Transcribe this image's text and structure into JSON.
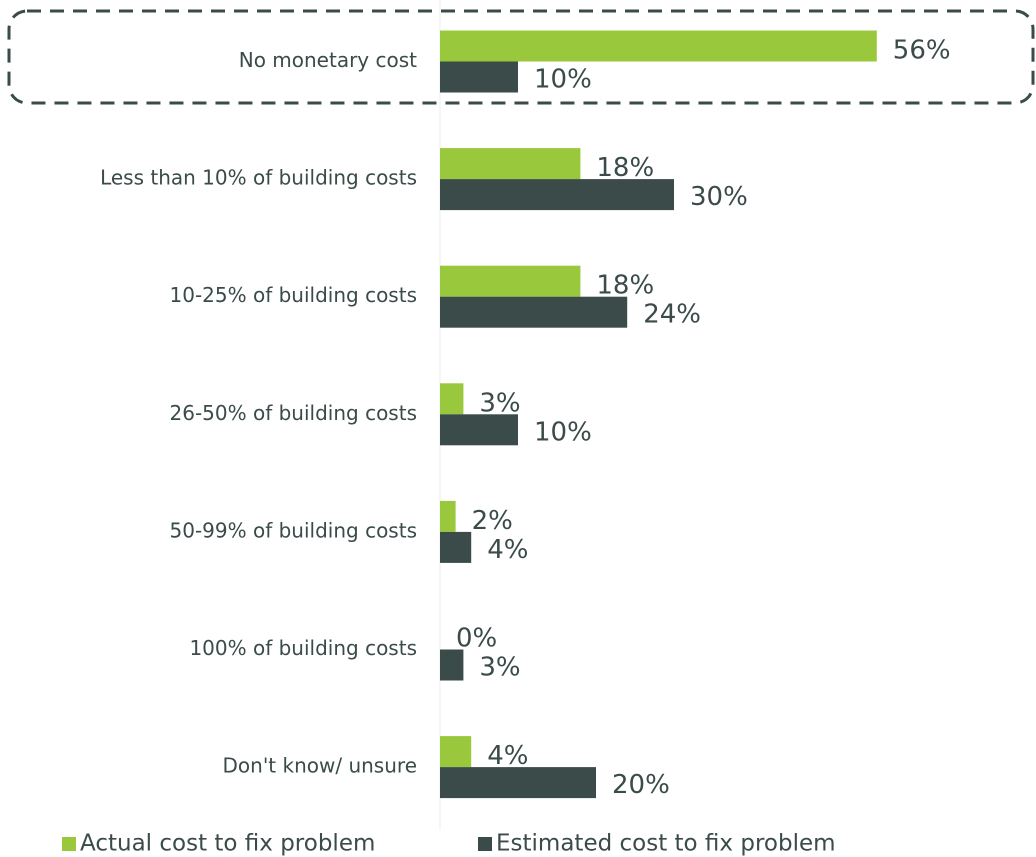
{
  "chart_data": {
    "type": "hbar",
    "categories": [
      "No monetary cost",
      "Less than 10% of building costs",
      "10-25% of building costs",
      "26-50% of building costs",
      "50-99% of building costs",
      "100% of building costs",
      "Don't know/ unsure"
    ],
    "series": [
      {
        "name": "Actual cost to fix problem",
        "color": "#9ac83c",
        "values": [
          56,
          18,
          18,
          3,
          2,
          0,
          4
        ],
        "value_labels": [
          "56%",
          "18%",
          "18%",
          "3%",
          "2%",
          "0%",
          "4%"
        ]
      },
      {
        "name": "Estimated cost to fix problem",
        "color": "#3a4b4a",
        "values": [
          10,
          30,
          24,
          10,
          4,
          3,
          20
        ],
        "value_labels": [
          "10%",
          "30%",
          "24%",
          "10%",
          "4%",
          "3%",
          "20%"
        ]
      }
    ],
    "xlim": [
      0,
      76
    ]
  }
}
